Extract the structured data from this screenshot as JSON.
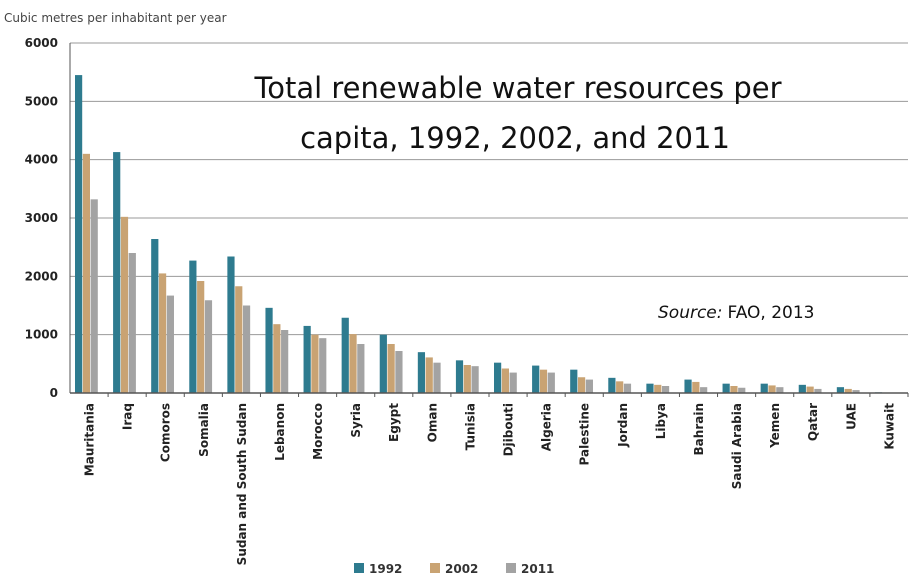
{
  "chart_data": {
    "type": "bar",
    "title_lines": [
      "Total renewable water resources per",
      "capita, 1992, 2002, and 2011"
    ],
    "ylabel": "Cubic metres per inhabitant per year",
    "source_label": "Source:",
    "source_value": "FAO, 2013",
    "ylim": [
      0,
      6000
    ],
    "yticks": [
      0,
      1000,
      2000,
      3000,
      4000,
      5000,
      6000
    ],
    "grid": true,
    "legend_position": "bottom-center",
    "categories": [
      "Mauritania",
      "Iraq",
      "Comoros",
      "Somalia",
      "Sudan and South Sudan",
      "Lebanon",
      "Morocco",
      "Syria",
      "Egypt",
      "Oman",
      "Tunisia",
      "Djibouti",
      "Algeria",
      "Palestine",
      "Jordan",
      "Libya",
      "Bahrain",
      "Saudi Arabia",
      "Yemen",
      "Qatar",
      "UAE",
      "Kuwait"
    ],
    "series": [
      {
        "name": "1992",
        "color": "#2e7b8f",
        "values": [
          5450,
          4130,
          2640,
          2270,
          2340,
          1460,
          1150,
          1290,
          1000,
          700,
          560,
          520,
          470,
          400,
          260,
          160,
          230,
          160,
          160,
          140,
          100,
          12
        ]
      },
      {
        "name": "2002",
        "color": "#c9a373",
        "values": [
          4100,
          3020,
          2050,
          1920,
          1830,
          1180,
          1000,
          1010,
          840,
          610,
          480,
          420,
          400,
          270,
          200,
          140,
          190,
          120,
          130,
          110,
          70,
          8
        ]
      },
      {
        "name": "2011",
        "color": "#a3a3a3",
        "values": [
          3320,
          2400,
          1670,
          1590,
          1500,
          1080,
          940,
          840,
          720,
          520,
          460,
          350,
          350,
          230,
          160,
          120,
          100,
          90,
          100,
          70,
          50,
          5
        ]
      }
    ]
  }
}
